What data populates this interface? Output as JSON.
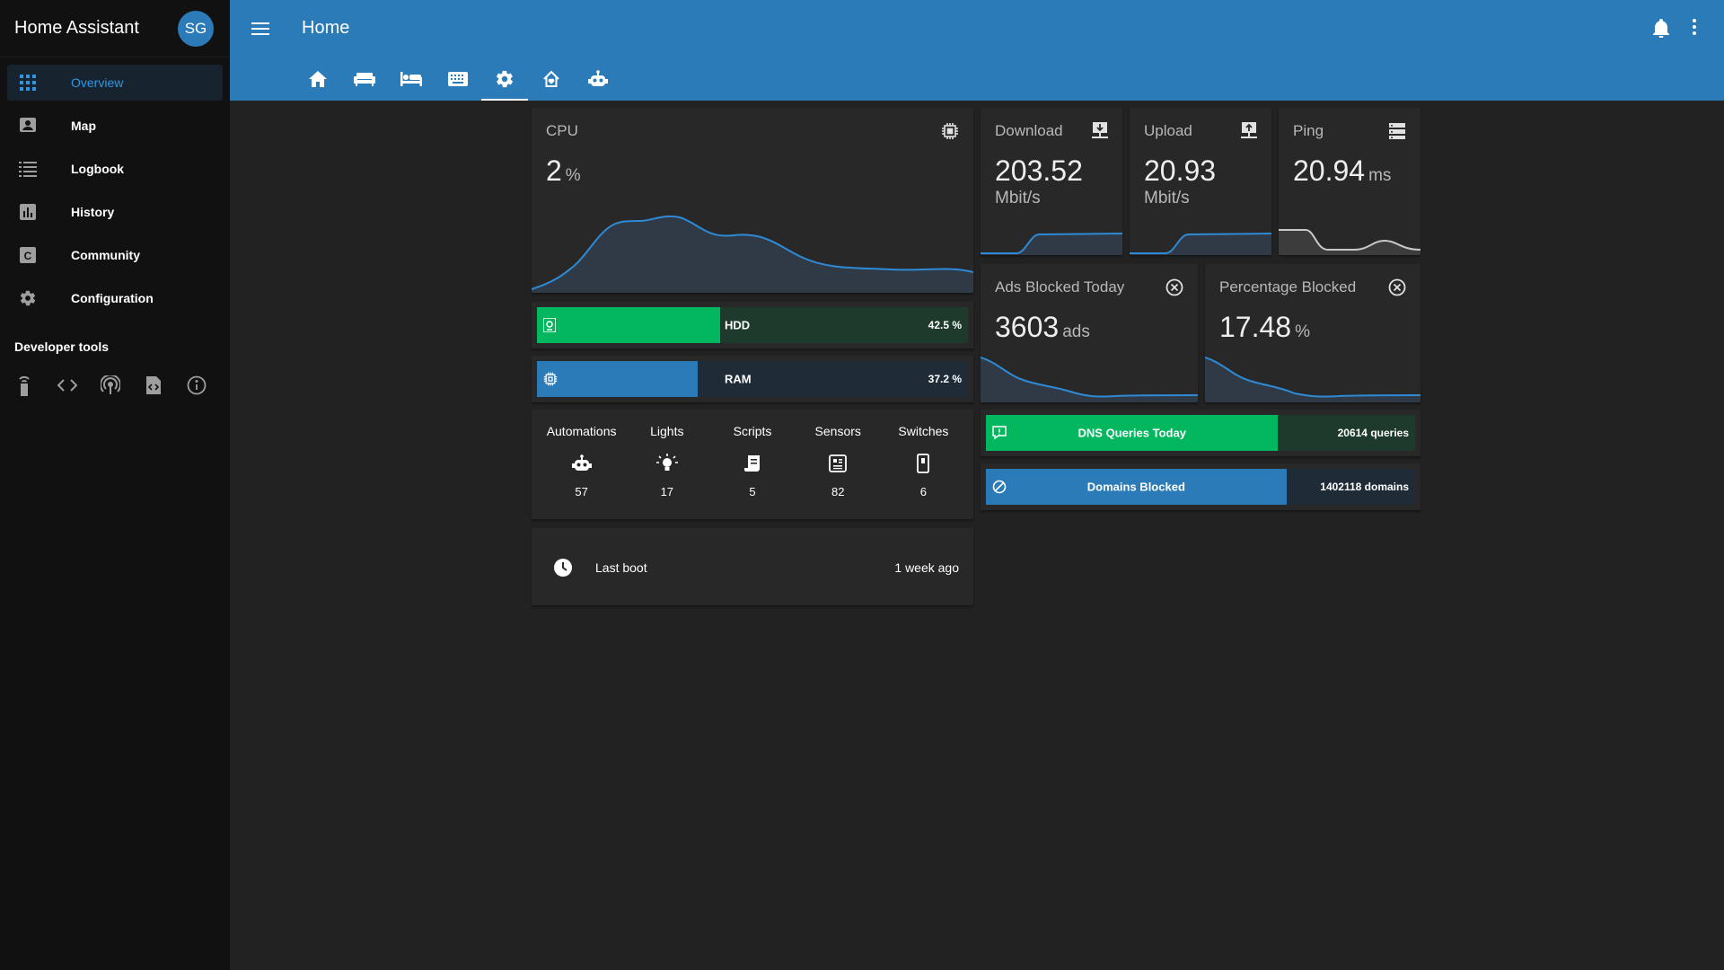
{
  "app": {
    "title": "Home Assistant",
    "user_initials": "SG"
  },
  "sidebar": {
    "items": [
      {
        "label": "Overview",
        "icon": "grid-icon",
        "active": true
      },
      {
        "label": "Map",
        "icon": "account-box-icon"
      },
      {
        "label": "Logbook",
        "icon": "list-icon"
      },
      {
        "label": "History",
        "icon": "chart-bar-icon"
      },
      {
        "label": "Community",
        "icon": "community-icon"
      },
      {
        "label": "Configuration",
        "icon": "gear-icon"
      }
    ],
    "developer_tools_title": "Developer tools",
    "developer_tools": [
      "remote-icon",
      "code-icon",
      "broadcast-icon",
      "file-code-icon",
      "info-icon"
    ]
  },
  "header": {
    "title": "Home",
    "tabs": [
      "home-icon",
      "sofa-icon",
      "bed-icon",
      "keyboard-icon",
      "gear-icon",
      "house-heart-icon",
      "robot-icon"
    ],
    "active_tab": 4
  },
  "cards": {
    "cpu": {
      "title": "CPU",
      "value": "2",
      "unit": "%"
    },
    "download": {
      "title": "Download",
      "value": "203.52",
      "unit": "Mbit/s"
    },
    "upload": {
      "title": "Upload",
      "value": "20.93",
      "unit": "Mbit/s"
    },
    "ping": {
      "title": "Ping",
      "value": "20.94",
      "unit": "ms"
    },
    "ads_blocked": {
      "title": "Ads Blocked Today",
      "value": "3603",
      "unit": "ads"
    },
    "pct_blocked": {
      "title": "Percentage Blocked",
      "value": "17.48",
      "unit": "%"
    },
    "hdd": {
      "label": "HDD",
      "value": "42.5 %",
      "percent": 42.5
    },
    "ram": {
      "label": "RAM",
      "value": "37.2 %",
      "percent": 37.2
    },
    "dns": {
      "label": "DNS Queries Today",
      "value": "20614 queries",
      "percent": 68
    },
    "domains": {
      "label": "Domains Blocked",
      "value": "1402118 domains",
      "percent": 70
    },
    "counts": [
      {
        "label": "Automations",
        "icon": "robot-icon",
        "value": "57"
      },
      {
        "label": "Lights",
        "icon": "lightbulb-icon",
        "value": "17"
      },
      {
        "label": "Scripts",
        "icon": "script-icon",
        "value": "5"
      },
      {
        "label": "Sensors",
        "icon": "sensor-icon",
        "value": "82"
      },
      {
        "label": "Switches",
        "icon": "switch-icon",
        "value": "6"
      }
    ],
    "last_boot": {
      "label": "Last boot",
      "value": "1 week ago"
    }
  },
  "colors": {
    "header": "#2b7bb9",
    "green": "#03b75f",
    "blue": "#2b7bb9",
    "graph_line": "#2f8ad6",
    "ping_line": "#c8c8c8"
  }
}
